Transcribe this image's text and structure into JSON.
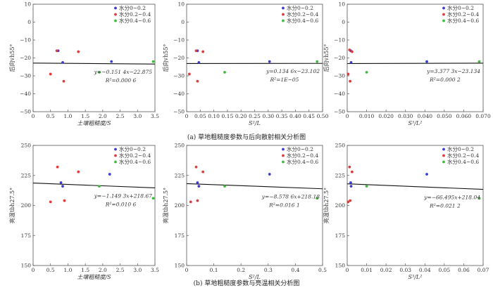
{
  "captions": {
    "top": "(a) 草地粗糙度参数与后向散射相关分析图",
    "bottom": "(b) 草地粗糙度参数与亮温相关分析图"
  },
  "colors": {
    "s1": "#3b3bd6",
    "s2": "#e03a3a",
    "s3": "#3bbf3b",
    "fit": "#111111",
    "axis": "#555555"
  },
  "legend_labels": [
    "水分0~0.2",
    "水分0.2~0.4",
    "水分0.4~0.6"
  ],
  "chart_data": [
    {
      "type": "scatter",
      "xlabel": "土壤粗糙度/S",
      "ylabel": "后向vh55°",
      "xlim": [
        0,
        3.5
      ],
      "ylim": [
        -50,
        10
      ],
      "xticks": [
        0,
        0.5,
        1.0,
        1.5,
        2.0,
        2.5,
        3.0,
        3.5
      ],
      "xtick_labels": [
        "0",
        "0.5",
        "1.0",
        "1.5",
        "2.0",
        "2.5",
        "3.0",
        "3.5"
      ],
      "yticks": [
        -50,
        -40,
        -30,
        -20,
        -10,
        0,
        10
      ],
      "ytick_labels": [
        "−50",
        "−40",
        "−30",
        "−20",
        "−10",
        "0",
        "10"
      ],
      "fit": {
        "slope": -0.1514,
        "intercept": -22.875
      },
      "annotation": [
        "y=−0.151 4x−22.875",
        "R²=0.000 6"
      ],
      "series": [
        {
          "name": "水分0~0.2",
          "points": [
            [
              0.72,
              -16
            ],
            [
              0.85,
              -22.5
            ],
            [
              2.25,
              -22
            ]
          ]
        },
        {
          "name": "水分0.2~0.4",
          "points": [
            [
              0.5,
              -29
            ],
            [
              0.68,
              -16
            ],
            [
              0.88,
              -33
            ],
            [
              1.3,
              -16.5
            ]
          ]
        },
        {
          "name": "水分0.4~0.6",
          "points": [
            [
              1.9,
              -28
            ],
            [
              3.45,
              -22
            ]
          ]
        }
      ]
    },
    {
      "type": "scatter",
      "xlabel": "S²/L",
      "ylabel": "后向vh55°",
      "xlim": [
        0,
        0.5
      ],
      "ylim": [
        -50,
        10
      ],
      "xticks": [
        0,
        0.05,
        0.1,
        0.15,
        0.2,
        0.25,
        0.3,
        0.35,
        0.4,
        0.45,
        0.5
      ],
      "xtick_labels": [
        "0",
        "0.05",
        "0.10",
        "0.15",
        "0.20",
        "0.25",
        "0.30",
        "0.35",
        "0.40",
        "0.45",
        "0.50"
      ],
      "yticks": [
        -50,
        -40,
        -30,
        -20,
        -10,
        0,
        10
      ],
      "ytick_labels": [
        "−50",
        "−40",
        "−30",
        "−20",
        "−10",
        "0",
        "10"
      ],
      "fit": {
        "slope": 0.1346,
        "intercept": -23.102
      },
      "annotation": [
        "y=0.134 6x−23.102",
        "R²=1E−05"
      ],
      "series": [
        {
          "name": "水分0~0.2",
          "points": [
            [
              0.04,
              -16
            ],
            [
              0.045,
              -22.5
            ],
            [
              0.305,
              -22
            ]
          ]
        },
        {
          "name": "水分0.2~0.4",
          "points": [
            [
              0.01,
              -29
            ],
            [
              0.035,
              -16
            ],
            [
              0.04,
              -33
            ],
            [
              0.06,
              -16.5
            ]
          ]
        },
        {
          "name": "水分0.4~0.6",
          "points": [
            [
              0.14,
              -28
            ],
            [
              0.48,
              -22
            ]
          ]
        }
      ]
    },
    {
      "type": "scatter",
      "xlabel": "S³/L²",
      "ylabel": "后向vh55°",
      "xlim": [
        0,
        0.07
      ],
      "ylim": [
        -50,
        10
      ],
      "xticks": [
        0,
        0.01,
        0.02,
        0.03,
        0.04,
        0.05,
        0.06,
        0.07
      ],
      "xtick_labels": [
        "0",
        "0.010",
        "0.020",
        "0.030",
        "0.040",
        "0.050",
        "0.060",
        "0.070"
      ],
      "yticks": [
        -50,
        -40,
        -30,
        -20,
        -10,
        0,
        10
      ],
      "ytick_labels": [
        "−50",
        "−40",
        "−30",
        "−20",
        "−10",
        "0",
        "10"
      ],
      "fit": {
        "slope": 3.3773,
        "intercept": -23.134
      },
      "annotation": [
        "y=3.377 3x−23.134",
        "R²=0.000 2"
      ],
      "series": [
        {
          "name": "水分0~0.2",
          "points": [
            [
              0.0018,
              -16
            ],
            [
              0.002,
              -22.5
            ],
            [
              0.041,
              -22
            ]
          ]
        },
        {
          "name": "水分0.2~0.4",
          "points": [
            [
              0.0005,
              -29
            ],
            [
              0.0012,
              -15.5
            ],
            [
              0.0015,
              -33
            ],
            [
              0.0025,
              -16.5
            ]
          ]
        },
        {
          "name": "水分0.4~0.6",
          "points": [
            [
              0.01,
              -28
            ],
            [
              0.068,
              -22
            ]
          ]
        }
      ]
    },
    {
      "type": "scatter",
      "xlabel": "土壤粗糙度/S",
      "ylabel": "亮温tbh27.5°",
      "xlim": [
        0,
        3.5
      ],
      "ylim": [
        150,
        250
      ],
      "xticks": [
        0,
        0.5,
        1.0,
        1.5,
        2.0,
        2.5,
        3.0,
        3.5
      ],
      "xtick_labels": [
        "0",
        "0.5",
        "1.0",
        "1.5",
        "2.0",
        "2.5",
        "3.0",
        "3.5"
      ],
      "yticks": [
        150,
        175,
        200,
        225,
        250
      ],
      "ytick_labels": [
        "150",
        "175",
        "200",
        "225",
        "250"
      ],
      "fit": {
        "slope": -1.1493,
        "intercept": 218.67
      },
      "annotation": [
        "y=−1.149 3x+218.67",
        "R²=0.010 6"
      ],
      "series": [
        {
          "name": "水分0~0.2",
          "points": [
            [
              0.8,
              219
            ],
            [
              0.85,
              216
            ],
            [
              2.2,
              226
            ]
          ]
        },
        {
          "name": "水分0.2~0.4",
          "points": [
            [
              0.5,
              203
            ],
            [
              0.7,
              232
            ],
            [
              0.9,
              204
            ],
            [
              1.3,
              228
            ]
          ]
        },
        {
          "name": "水分0.4~0.6",
          "points": [
            [
              1.9,
              216
            ],
            [
              3.45,
              206
            ]
          ]
        }
      ]
    },
    {
      "type": "scatter",
      "xlabel": "S²/L",
      "ylabel": "亮温tbh27.5°",
      "xlim": [
        0,
        0.5
      ],
      "ylim": [
        150,
        250
      ],
      "xticks": [
        0,
        0.1,
        0.2,
        0.3,
        0.4,
        0.5
      ],
      "xtick_labels": [
        "0",
        "0.1",
        "0.2",
        "0.3",
        "0.4",
        "0.5"
      ],
      "yticks": [
        150,
        175,
        200,
        225,
        250
      ],
      "ytick_labels": [
        "150",
        "175",
        "200",
        "225",
        "250"
      ],
      "fit": {
        "slope": -8.5786,
        "intercept": 218.18
      },
      "annotation": [
        "y=−8.578 6x+218.18",
        "R²=0.016 1"
      ],
      "series": [
        {
          "name": "水分0~0.2",
          "points": [
            [
              0.04,
              219
            ],
            [
              0.045,
              216
            ],
            [
              0.305,
              226
            ]
          ]
        },
        {
          "name": "水分0.2~0.4",
          "points": [
            [
              0.015,
              203
            ],
            [
              0.035,
              232
            ],
            [
              0.04,
              204
            ],
            [
              0.06,
              228
            ]
          ]
        },
        {
          "name": "水分0.4~0.6",
          "points": [
            [
              0.14,
              216
            ],
            [
              0.48,
              206
            ]
          ]
        }
      ]
    },
    {
      "type": "scatter",
      "xlabel": "S³/L²",
      "ylabel": "亮温tbh27.5°",
      "xlim": [
        0,
        0.07
      ],
      "ylim": [
        150,
        250
      ],
      "xticks": [
        0,
        0.01,
        0.02,
        0.03,
        0.04,
        0.05,
        0.06,
        0.07
      ],
      "xtick_labels": [
        "0",
        "0.01",
        "0.02",
        "0.03",
        "0.04",
        "0.05",
        "0.06",
        "0.07"
      ],
      "yticks": [
        150,
        175,
        200,
        225,
        250
      ],
      "ytick_labels": [
        "150",
        "175",
        "200",
        "225",
        "250"
      ],
      "fit": {
        "slope": -66.495,
        "intercept": 218.04
      },
      "annotation": [
        "y=−66.495x+218.04",
        "R²=0.021 2"
      ],
      "series": [
        {
          "name": "水分0~0.2",
          "points": [
            [
              0.0018,
              219
            ],
            [
              0.002,
              216
            ],
            [
              0.041,
              226
            ]
          ]
        },
        {
          "name": "水分0.2~0.4",
          "points": [
            [
              0.0005,
              203
            ],
            [
              0.0012,
              232
            ],
            [
              0.0015,
              204
            ],
            [
              0.0025,
              228
            ]
          ]
        },
        {
          "name": "水分0.4~0.6",
          "points": [
            [
              0.01,
              216
            ],
            [
              0.068,
              206
            ]
          ]
        }
      ]
    }
  ]
}
